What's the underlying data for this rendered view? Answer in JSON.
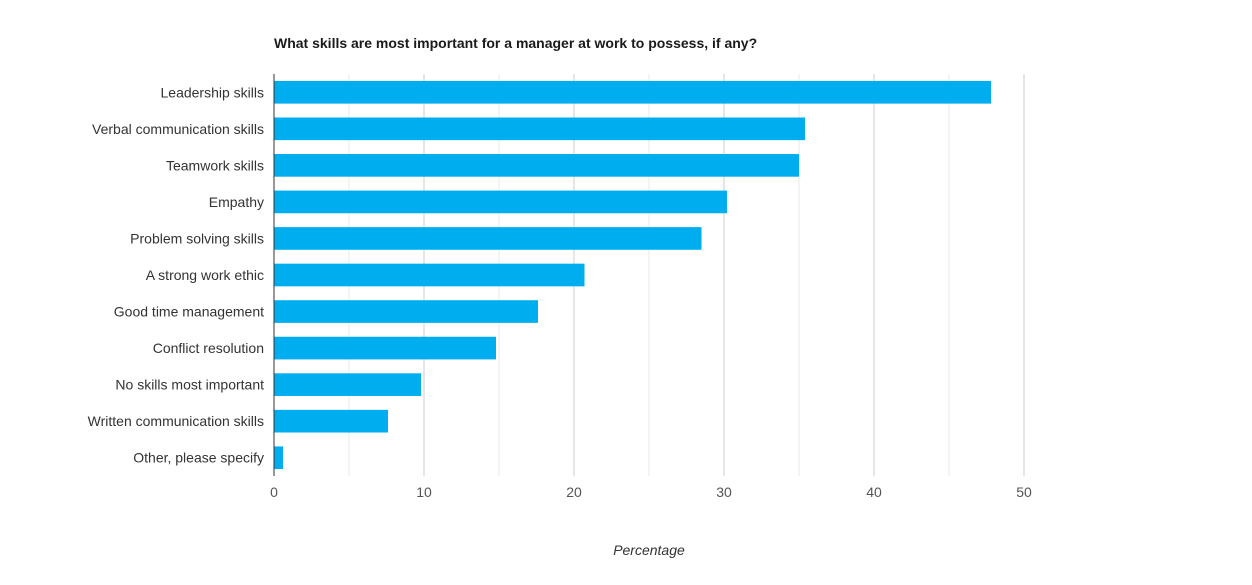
{
  "chart_data": {
    "type": "bar",
    "orientation": "horizontal",
    "title": "What skills are most important for a manager at work to possess, if any?",
    "xlabel": "Percentage",
    "ylabel": "",
    "categories": [
      "Leadership skills",
      "Verbal communication skills",
      "Teamwork skills",
      "Empathy",
      "Problem solving skills",
      "A strong work ethic",
      "Good time management",
      "Conflict resolution",
      "No skills most important",
      "Written communication skills",
      "Other, please specify"
    ],
    "values": [
      47.8,
      35.4,
      35.0,
      30.2,
      28.5,
      20.7,
      17.6,
      14.8,
      9.8,
      7.6,
      0.6
    ],
    "xlim": [
      0,
      50
    ],
    "xticks": [
      0,
      10,
      20,
      30,
      40,
      50
    ],
    "grid": true,
    "bar_color": "#00aeef",
    "gridline_color": "#cccccc",
    "minor_gridline_color": "#e8e8e8"
  }
}
